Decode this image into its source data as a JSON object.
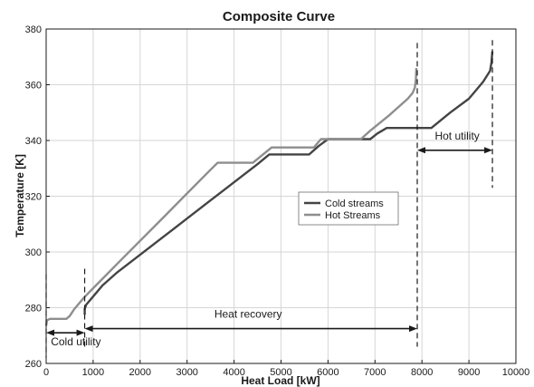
{
  "chart_data": {
    "type": "line",
    "title": "Composite Curve",
    "xlabel": "Heat Load [kW]",
    "ylabel": "Temperature [K]",
    "xlim": [
      0,
      10000
    ],
    "ylim": [
      260,
      380
    ],
    "xticks": [
      0,
      1000,
      2000,
      3000,
      4000,
      5000,
      6000,
      7000,
      8000,
      9000,
      10000
    ],
    "yticks": [
      260,
      280,
      300,
      320,
      340,
      360,
      380
    ],
    "grid": true,
    "legend_position": "center-right",
    "series": [
      {
        "name": "Cold streams",
        "color": "#444444",
        "x": [
          820,
          820,
          850,
          1000,
          1200,
          1500,
          2000,
          2500,
          3000,
          3500,
          4000,
          4500,
          4750,
          5600,
          5800,
          6000,
          6900,
          7050,
          7250,
          7900,
          8200,
          8600,
          9000,
          9300,
          9450,
          9480,
          9500
        ],
        "y": [
          277.5,
          279.5,
          281,
          284,
          288,
          292.5,
          299,
          305.5,
          312,
          318.5,
          325,
          331.5,
          335,
          335,
          338,
          340.5,
          340.5,
          342.5,
          344.5,
          344.5,
          344.5,
          350,
          355,
          361,
          365,
          368,
          372
        ]
      },
      {
        "name": "Hot Streams",
        "color": "#8e8e8e",
        "x": [
          0,
          20,
          80,
          430,
          500,
          600,
          700,
          800,
          1000,
          1500,
          2000,
          2500,
          3000,
          3500,
          3650,
          4400,
          4800,
          5700,
          5850,
          6000,
          6700,
          6900,
          7300,
          7700,
          7800,
          7850,
          7870,
          7880
        ],
        "y": [
          273.5,
          275.5,
          276,
          276,
          277,
          279.5,
          281.5,
          283.5,
          287,
          295.5,
          304,
          312.5,
          321,
          329.5,
          332,
          332,
          337.5,
          337.5,
          340.5,
          340.5,
          340.5,
          343.5,
          349,
          355,
          357,
          359,
          362,
          366
        ]
      }
    ],
    "annotations": [
      {
        "label": "Heat recovery"
      },
      {
        "label": "Hot utility"
      },
      {
        "label": "Cold utility"
      }
    ]
  }
}
